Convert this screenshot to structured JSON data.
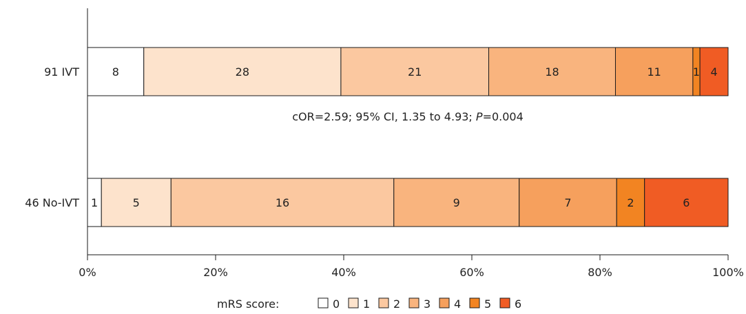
{
  "chart_data": {
    "type": "bar",
    "orientation": "horizontal",
    "stacked": "percent",
    "categories": [
      "91 IVT",
      "46 No-IVT"
    ],
    "series": [
      {
        "name": "0",
        "values": [
          8,
          1
        ],
        "color": "#ffffff"
      },
      {
        "name": "1",
        "values": [
          28,
          5
        ],
        "color": "#fde3cc"
      },
      {
        "name": "2",
        "values": [
          21,
          16
        ],
        "color": "#fbc8a0"
      },
      {
        "name": "3",
        "values": [
          18,
          9
        ],
        "color": "#f9b47e"
      },
      {
        "name": "4",
        "values": [
          11,
          7
        ],
        "color": "#f6a05d"
      },
      {
        "name": "5",
        "values": [
          1,
          2
        ],
        "color": "#f28422"
      },
      {
        "name": "6",
        "values": [
          4,
          6
        ],
        "color": "#f05c24"
      }
    ],
    "annotation": {
      "pre": "cOR=2.59; 95% CI, 1.35 to 4.93; ",
      "p": "P",
      "post": "=0.004"
    },
    "xticks": [
      "0%",
      "20%",
      "40%",
      "60%",
      "80%",
      "100%"
    ],
    "xlim": [
      0,
      100
    ],
    "legend": {
      "title": "mRS score:",
      "position": "bottom"
    },
    "grid": false
  }
}
